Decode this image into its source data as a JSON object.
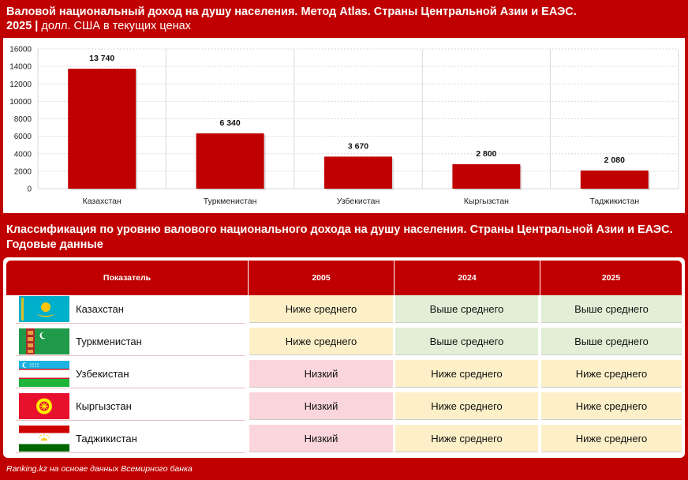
{
  "header": {
    "title_bold": "Валовой национальный доход на душу населения. Метод Atlas. Страны Центральной Азии и ЕАЭС.",
    "year_bold": "2025 |",
    "units": " долл. США в текущих ценах"
  },
  "chart_data": {
    "type": "bar",
    "categories": [
      "Казахстан",
      "Туркменистан",
      "Узбекистан",
      "Кыргызстан",
      "Таджикистан"
    ],
    "values": [
      13740,
      6340,
      3670,
      2800,
      2080
    ],
    "value_labels": [
      "13 740",
      "6 340",
      "3 670",
      "2 800",
      "2 080"
    ],
    "ylim": [
      0,
      16000
    ],
    "yticks": [
      0,
      2000,
      4000,
      6000,
      8000,
      10000,
      12000,
      14000,
      16000
    ],
    "grid": true,
    "bar_color": "#c00000"
  },
  "section2": {
    "title": "Классификация по уровню валового национального дохода на душу населения. Страны Центральной Азии и ЕАЭС. Годовые данные"
  },
  "table": {
    "headers": [
      "Показатель",
      "2005",
      "2024",
      "2025"
    ],
    "rows": [
      {
        "country": "Казахстан",
        "flag": "kazakhstan-flag",
        "values": [
          "Ниже среднего",
          "Выше среднего",
          "Выше среднего"
        ],
        "classes": [
          "lower-mid",
          "upper-mid",
          "upper-mid"
        ]
      },
      {
        "country": "Туркменистан",
        "flag": "turkmenistan-flag",
        "values": [
          "Ниже среднего",
          "Выше среднего",
          "Выше среднего"
        ],
        "classes": [
          "lower-mid",
          "upper-mid",
          "upper-mid"
        ]
      },
      {
        "country": "Узбекистан",
        "flag": "uzbekistan-flag",
        "values": [
          "Низкий",
          "Ниже среднего",
          "Ниже среднего"
        ],
        "classes": [
          "low",
          "lower-mid",
          "lower-mid"
        ]
      },
      {
        "country": "Кыргызстан",
        "flag": "kyrgyzstan-flag",
        "values": [
          "Низкий",
          "Ниже среднего",
          "Ниже среднего"
        ],
        "classes": [
          "low",
          "lower-mid",
          "lower-mid"
        ]
      },
      {
        "country": "Таджикистан",
        "flag": "tajikistan-flag",
        "values": [
          "Низкий",
          "Ниже среднего",
          "Ниже среднего"
        ],
        "classes": [
          "low",
          "lower-mid",
          "lower-mid"
        ]
      }
    ]
  },
  "colors": {
    "brand": "#c00000",
    "lower_mid": "#fdf0c8",
    "upper_mid": "#e2efd6",
    "low": "#fbd5dc"
  },
  "footer": {
    "source": "Ranking.kz на основе данных Всемирного банка"
  }
}
